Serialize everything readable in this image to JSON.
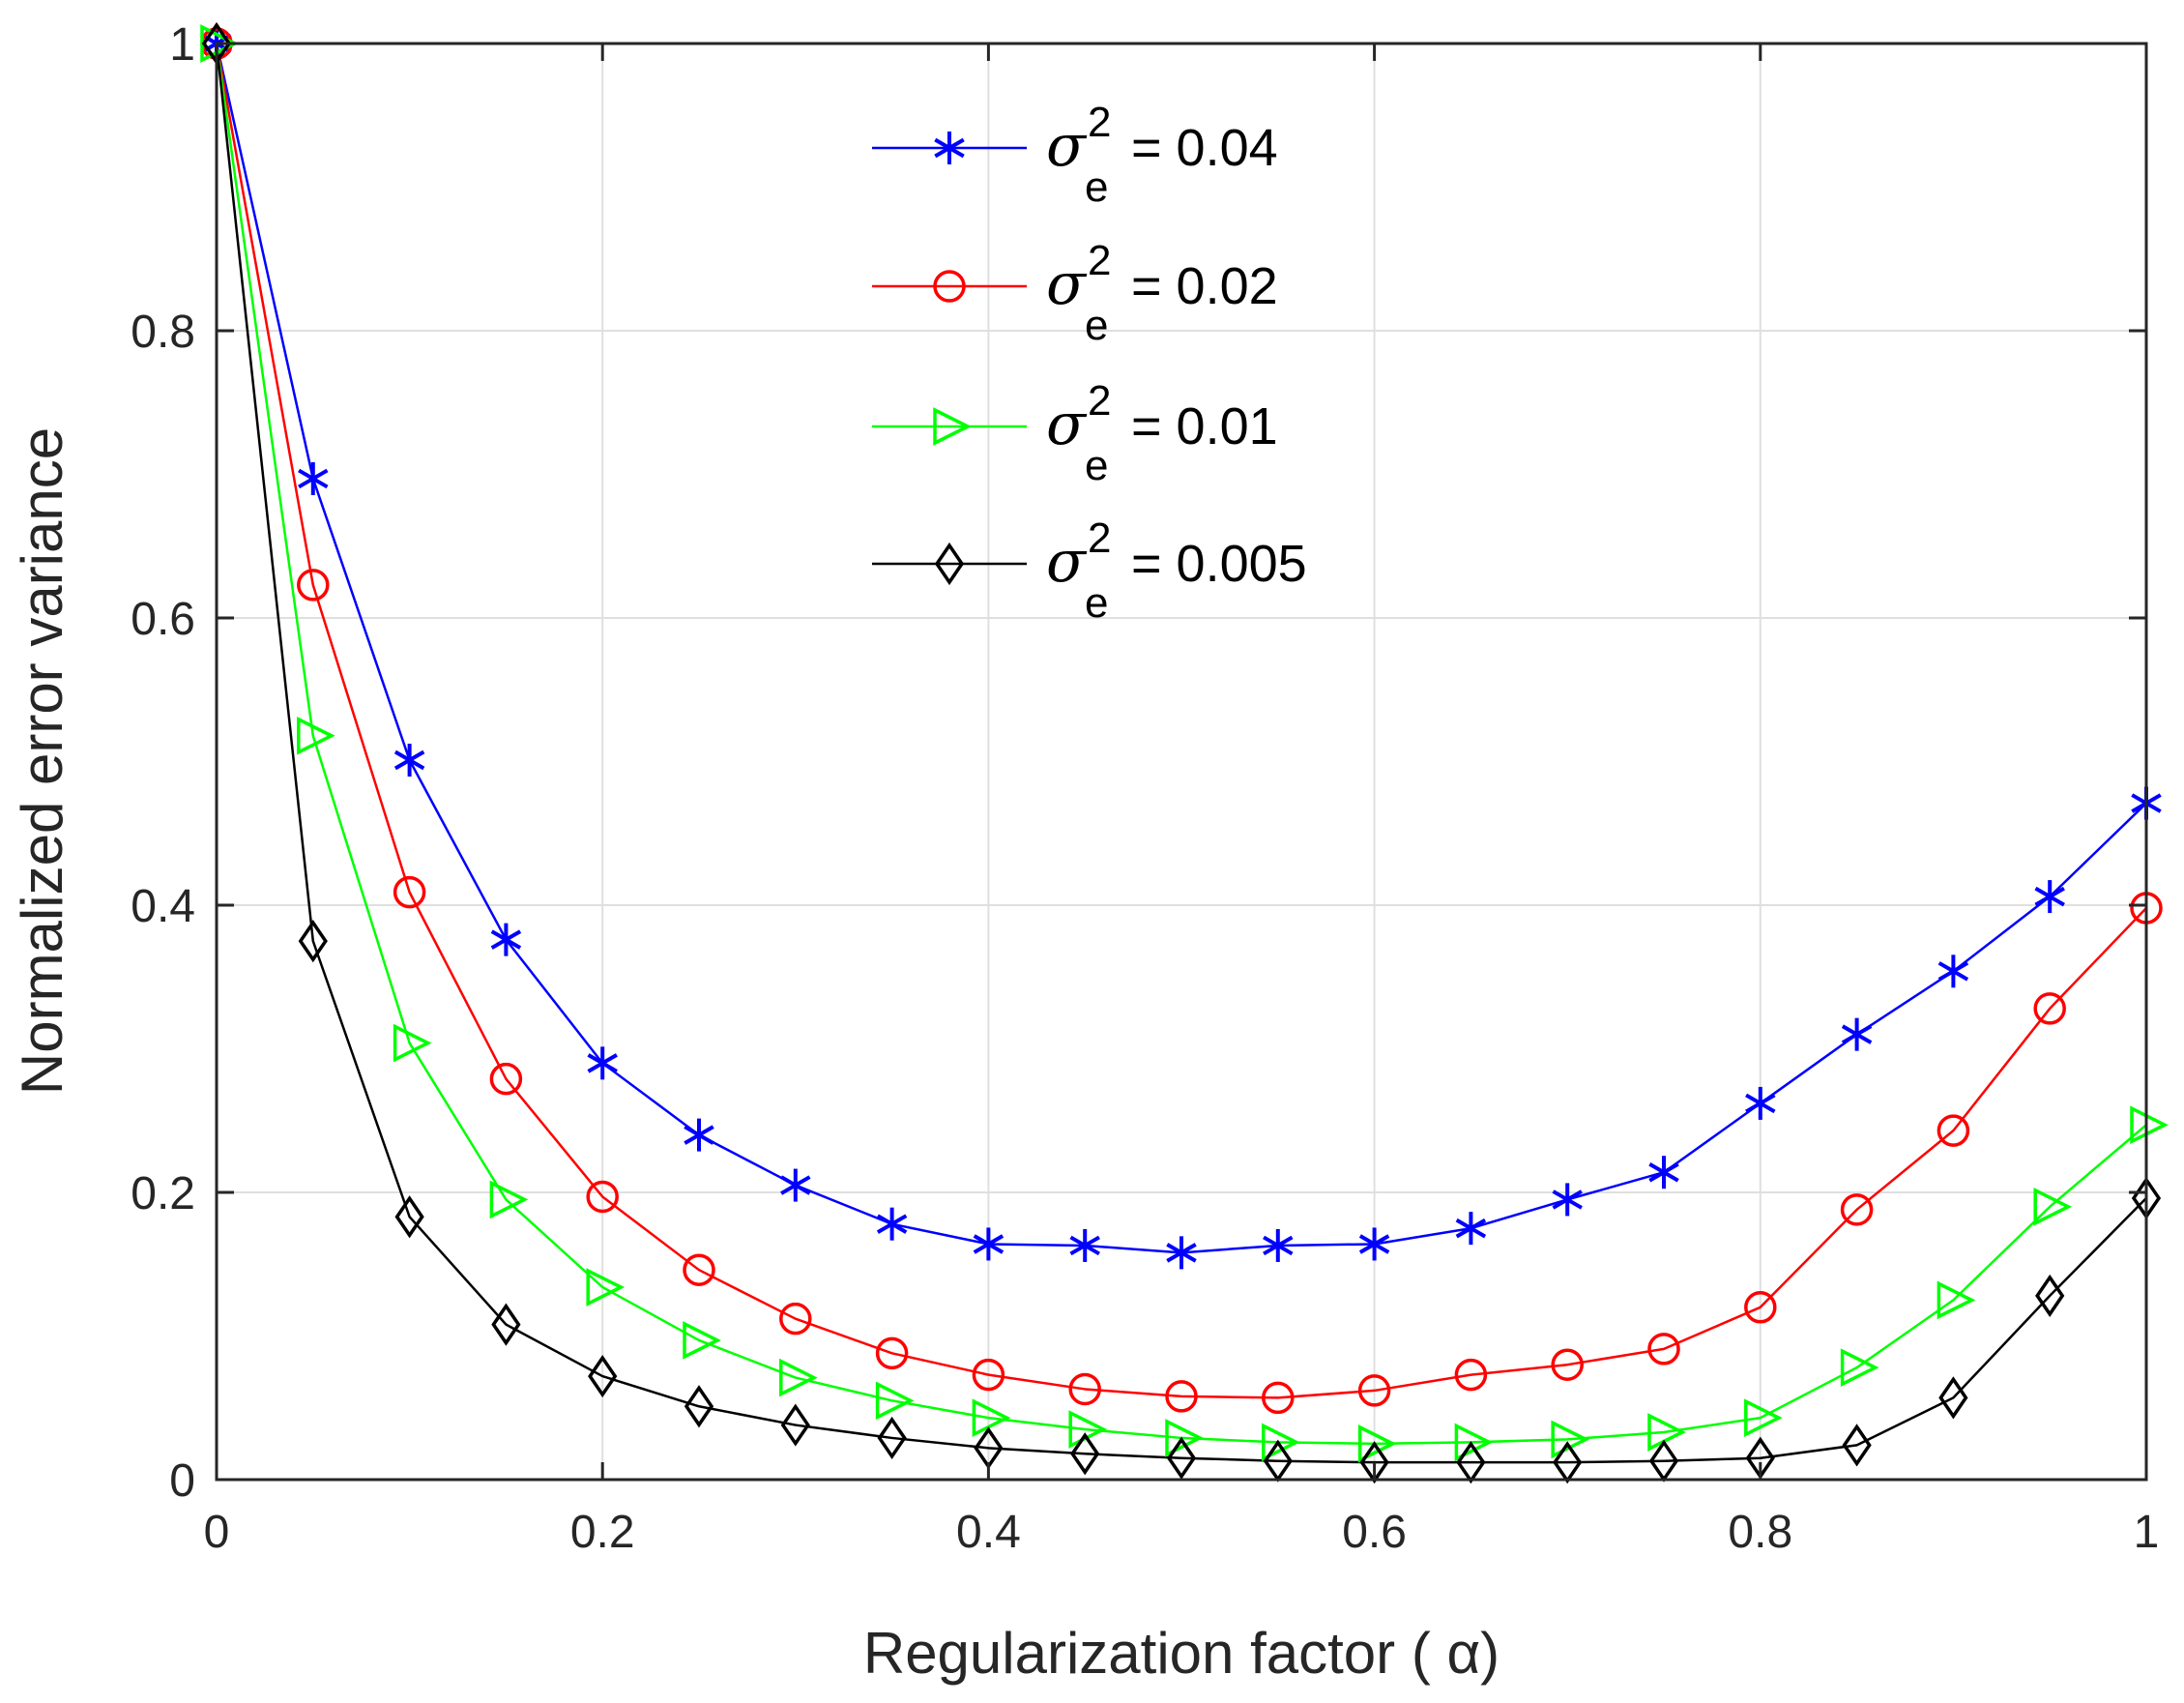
{
  "chart_data": {
    "type": "line",
    "xlabel": "Regularization factor ( α)",
    "ylabel": "Normalized error variance",
    "xlim": [
      0,
      1
    ],
    "ylim": [
      0,
      1
    ],
    "grid": true,
    "legend_position": "top-center",
    "xticks": [
      0,
      0.2,
      0.4,
      0.6,
      0.8,
      1
    ],
    "xtick_labels": [
      "0",
      "0.2",
      "0.4",
      "0.6",
      "0.8",
      "1"
    ],
    "yticks": [
      0,
      0.2,
      0.4,
      0.6,
      0.8,
      1
    ],
    "ytick_labels": [
      "0",
      "0.2",
      "0.4",
      "0.6",
      "0.8",
      "1"
    ],
    "x": [
      0,
      0.05,
      0.1,
      0.15,
      0.2,
      0.25,
      0.3,
      0.35,
      0.4,
      0.45,
      0.5,
      0.55,
      0.6,
      0.65,
      0.7,
      0.75,
      0.8,
      0.85,
      0.9,
      0.95,
      1
    ],
    "series": [
      {
        "name": "σe² = 0.04",
        "legend_symbol": "σ",
        "legend_sup": "2",
        "legend_sub": "e",
        "legend_value": "= 0.04",
        "color": "#0000ff",
        "marker": "asterisk",
        "values": [
          1.0,
          0.697,
          0.501,
          0.376,
          0.29,
          0.24,
          0.205,
          0.178,
          0.164,
          0.163,
          0.158,
          0.163,
          0.164,
          0.175,
          0.195,
          0.214,
          0.262,
          0.31,
          0.354,
          0.406,
          0.471
        ]
      },
      {
        "name": "σe² = 0.02",
        "legend_symbol": "σ",
        "legend_sup": "2",
        "legend_sub": "e",
        "legend_value": "= 0.02",
        "color": "#ff0000",
        "marker": "circle",
        "values": [
          1.0,
          0.623,
          0.409,
          0.279,
          0.197,
          0.146,
          0.112,
          0.088,
          0.073,
          0.063,
          0.058,
          0.057,
          0.062,
          0.073,
          0.08,
          0.091,
          0.12,
          0.188,
          0.243,
          0.328,
          0.398
        ]
      },
      {
        "name": "σe² = 0.01",
        "legend_symbol": "σ",
        "legend_sup": "2",
        "legend_sub": "e",
        "legend_value": "= 0.01",
        "color": "#00ff00",
        "marker": "triangle-right",
        "values": [
          1.0,
          0.518,
          0.304,
          0.195,
          0.134,
          0.097,
          0.071,
          0.055,
          0.043,
          0.035,
          0.029,
          0.026,
          0.025,
          0.026,
          0.028,
          0.033,
          0.043,
          0.078,
          0.125,
          0.19,
          0.247
        ]
      },
      {
        "name": "σe² = 0.005",
        "legend_symbol": "σ",
        "legend_sup": "2",
        "legend_sub": "e",
        "legend_value": "= 0.005",
        "color": "#000000",
        "marker": "diamond",
        "values": [
          1.0,
          0.375,
          0.183,
          0.108,
          0.072,
          0.051,
          0.038,
          0.029,
          0.022,
          0.018,
          0.015,
          0.013,
          0.012,
          0.012,
          0.012,
          0.013,
          0.015,
          0.024,
          0.057,
          0.128,
          0.196
        ]
      }
    ]
  }
}
